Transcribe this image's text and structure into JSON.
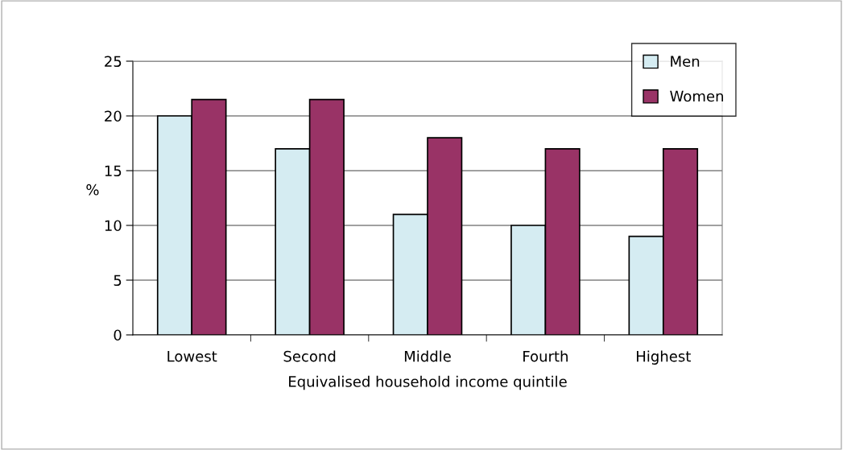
{
  "chart_data": {
    "type": "bar",
    "xlabel": "Equivalised household income quintile",
    "ylabel": "%",
    "categories": [
      "Lowest",
      "Second",
      "Middle",
      "Fourth",
      "Highest"
    ],
    "series": [
      {
        "name": "Men",
        "color": "#d5ecf2",
        "values": [
          20,
          17,
          11,
          10,
          9
        ]
      },
      {
        "name": "Women",
        "color": "#993366",
        "values": [
          21.5,
          21.5,
          18,
          17,
          17
        ]
      }
    ],
    "ylim": [
      0,
      25
    ],
    "yticks": [
      0,
      5,
      10,
      15,
      20,
      25
    ],
    "grid": "y",
    "legend": "top right"
  }
}
